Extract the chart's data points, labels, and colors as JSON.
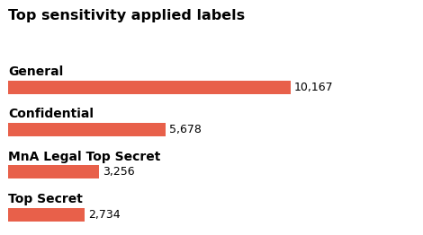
{
  "title": "Top sensitivity applied labels",
  "categories": [
    "General",
    "Confidential",
    "MnA Legal Top Secret",
    "Top Secret"
  ],
  "values": [
    10167,
    5678,
    3256,
    2734
  ],
  "value_labels": [
    "10,167",
    "5,678",
    "3,256",
    "2,734"
  ],
  "bar_color": "#E8604A",
  "background_color": "#ffffff",
  "title_fontsize": 11.5,
  "label_fontsize": 10,
  "value_fontsize": 9,
  "bar_height": 0.32,
  "xlim": [
    0,
    12500
  ]
}
